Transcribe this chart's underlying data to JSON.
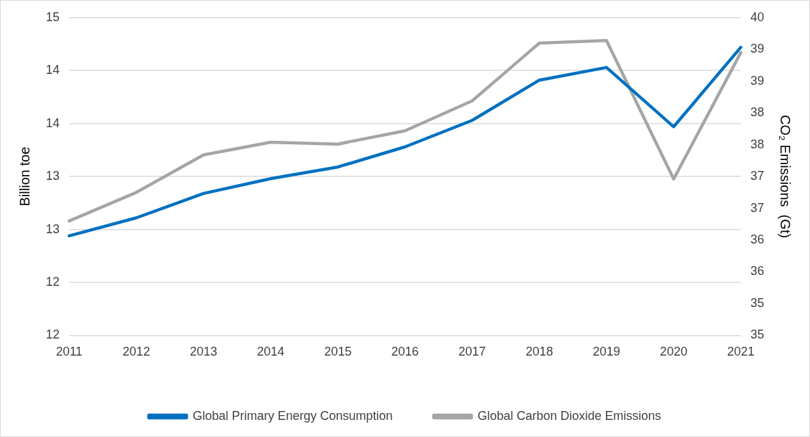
{
  "chart_data": {
    "type": "line",
    "ylabel": "Billion toe",
    "y2label": "CO₂ Emissions  (Gt)",
    "categories": [
      "2011",
      "2012",
      "2013",
      "2014",
      "2015",
      "2016",
      "2017",
      "2018",
      "2019",
      "2020",
      "2021"
    ],
    "series": [
      {
        "name": "Global Primary Energy Consumption",
        "color": "#0070c0",
        "values": [
          12.94,
          13.11,
          13.34,
          13.48,
          13.59,
          13.78,
          14.03,
          14.41,
          14.53,
          13.97,
          14.72
        ]
      },
      {
        "name": "Global Carbon Dioxide Emissions",
        "color": "#a5a5a5",
        "axis": "y2",
        "values": [
          36.8,
          37.25,
          37.84,
          38.04,
          38.01,
          38.22,
          38.69,
          39.6,
          39.64,
          37.46,
          39.45
        ]
      }
    ],
    "ylim": [
      12,
      15
    ],
    "yticks": [
      {
        "value": 12,
        "label": "12"
      },
      {
        "value": 12.5,
        "label": "12"
      },
      {
        "value": 13,
        "label": "13"
      },
      {
        "value": 13.5,
        "label": "13"
      },
      {
        "value": 14,
        "label": "14"
      },
      {
        "value": 14.5,
        "label": "14"
      },
      {
        "value": 15,
        "label": "15"
      }
    ],
    "y2lim": [
      35,
      40
    ],
    "y2ticks": [
      {
        "value": 35,
        "label": "35"
      },
      {
        "value": 35.5,
        "label": "35"
      },
      {
        "value": 36,
        "label": "36"
      },
      {
        "value": 36.5,
        "label": "36"
      },
      {
        "value": 37,
        "label": "37"
      },
      {
        "value": 37.5,
        "label": "37"
      },
      {
        "value": 38,
        "label": "38"
      },
      {
        "value": 38.5,
        "label": "38"
      },
      {
        "value": 39,
        "label": "39"
      },
      {
        "value": 39.5,
        "label": "39"
      },
      {
        "value": 40,
        "label": "40"
      }
    ],
    "grid": "y",
    "legend": "bottom",
    "marker": "none",
    "line_style": "solid"
  }
}
